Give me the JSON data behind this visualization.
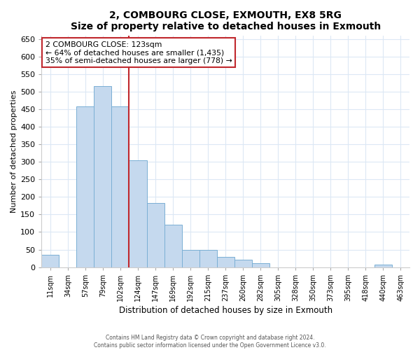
{
  "title": "2, COMBOURG CLOSE, EXMOUTH, EX8 5RG",
  "subtitle": "Size of property relative to detached houses in Exmouth",
  "xlabel": "Distribution of detached houses by size in Exmouth",
  "ylabel": "Number of detached properties",
  "bar_labels": [
    "11sqm",
    "34sqm",
    "57sqm",
    "79sqm",
    "102sqm",
    "124sqm",
    "147sqm",
    "169sqm",
    "192sqm",
    "215sqm",
    "237sqm",
    "260sqm",
    "282sqm",
    "305sqm",
    "328sqm",
    "350sqm",
    "373sqm",
    "395sqm",
    "418sqm",
    "440sqm",
    "463sqm"
  ],
  "bar_values": [
    35,
    0,
    458,
    515,
    458,
    305,
    183,
    120,
    50,
    50,
    29,
    22,
    12,
    0,
    0,
    0,
    0,
    0,
    0,
    8,
    0
  ],
  "bar_color": "#c5d9ee",
  "bar_edge_color": "#7aafd4",
  "vline_color": "#c0272d",
  "annotation_title": "2 COMBOURG CLOSE: 123sqm",
  "annotation_line1": "← 64% of detached houses are smaller (1,435)",
  "annotation_line2": "35% of semi-detached houses are larger (778) →",
  "annotation_box_color": "#c0272d",
  "ylim": [
    0,
    660
  ],
  "yticks": [
    0,
    50,
    100,
    150,
    200,
    250,
    300,
    350,
    400,
    450,
    500,
    550,
    600,
    650
  ],
  "footer1": "Contains HM Land Registry data © Crown copyright and database right 2024.",
  "footer2": "Contains public sector information licensed under the Open Government Licence v3.0.",
  "bg_color": "#ffffff",
  "plot_bg_color": "#ffffff",
  "grid_color": "#dce8f5"
}
